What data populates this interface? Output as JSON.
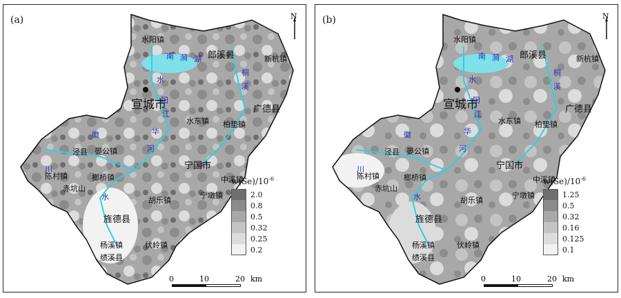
{
  "panels": [
    {
      "id": "a",
      "tag": "(a)",
      "legend": {
        "title": "w(Se)/10",
        "title_exp": "-6",
        "classes": [
          "2.0",
          "0.8",
          "0.5",
          "0.32",
          "0.25",
          "0.2"
        ],
        "colors": [
          "#6e6e6e",
          "#8c8c8c",
          "#a8a8a8",
          "#c4c4c4",
          "#dcdcdc",
          "#f2f2f2"
        ]
      }
    },
    {
      "id": "b",
      "tag": "(b)",
      "legend": {
        "title": "w(Se)/10",
        "title_exp": "-6",
        "classes": [
          "1.25",
          "0.5",
          "0.32",
          "0.16",
          "0.125",
          "0.1"
        ],
        "colors": [
          "#6e6e6e",
          "#8c8c8c",
          "#a8a8a8",
          "#c4c4c4",
          "#dcdcdc",
          "#f2f2f2"
        ]
      }
    }
  ],
  "north_label": "N",
  "scale": {
    "t0": "0",
    "t10": "10",
    "t20": "20",
    "unit": "km"
  },
  "places": {
    "shuiyang": "水阳镇",
    "langxi": "郎溪县",
    "xinhang": "新杭镇",
    "xuancheng": "宣城市",
    "shuidong": "水东镇",
    "guangde": "广德县",
    "baidian": "柏垫镇",
    "jingxian": "泾县",
    "yangong": "晏公镇",
    "ningguo": "宁国市",
    "chencun": "陈村镇",
    "rongqiao": "榔桥镇",
    "chikengshan": "赤坑山",
    "huangle": "胡乐镇",
    "zhongxi": "中溪镇",
    "ningdun": "宁墩镇",
    "jingde": "旌德县",
    "yangxi": "杨溪镇",
    "fuling": "伏岭镇",
    "jixi": "绩溪县"
  },
  "rivers": {
    "nan": "南",
    "yi": "漪",
    "hu": "湖",
    "shui": "水",
    "yang": "阳",
    "jiang": "江",
    "hua": "华",
    "he": "河",
    "tong": "桐",
    "xi": "溪",
    "hui": "徽",
    "chuan": "川",
    "shu": "水"
  }
}
